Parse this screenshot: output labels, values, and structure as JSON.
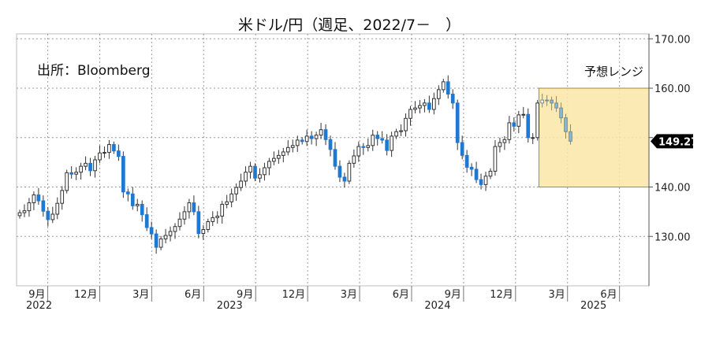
{
  "chart_data": {
    "type": "candlestick",
    "title": "米ドル/円（週足、2022/7－　）",
    "source": "出所：Bloomberg",
    "range_label": "予想レンジ",
    "last_price_label": "149.27",
    "ylim": [
      120,
      171
    ],
    "y_ticks": [
      {
        "value": 130,
        "label": "130.00"
      },
      {
        "value": 140,
        "label": "140.00"
      },
      {
        "value": 150,
        "label": ""
      },
      {
        "value": 160,
        "label": "160.00"
      },
      {
        "value": 170,
        "label": "170.00"
      }
    ],
    "x_months": [
      {
        "label": "9月",
        "value": 2
      },
      {
        "label": "12月",
        "value": 5
      },
      {
        "label": "3月",
        "value": 8
      },
      {
        "label": "6月",
        "value": 11
      },
      {
        "label": "9月",
        "value": 14
      },
      {
        "label": "12月",
        "value": 17
      },
      {
        "label": "3月",
        "value": 20
      },
      {
        "label": "6月",
        "value": 23
      },
      {
        "label": "9月",
        "value": 26
      },
      {
        "label": "12月",
        "value": 29
      },
      {
        "label": "3月",
        "value": 32
      },
      {
        "label": "6月",
        "value": 35
      }
    ],
    "x_years": [
      {
        "label": "2022",
        "value": 1.5
      },
      {
        "label": "2023",
        "value": 12.5
      },
      {
        "label": "2024",
        "value": 24.5
      },
      {
        "label": "2025",
        "value": 33.5
      }
    ],
    "x_range": [
      0.2,
      36.7
    ],
    "forecast_range": {
      "x_start": 30.35,
      "x_end": 36.7,
      "y_low": 140,
      "y_high": 160
    },
    "closes": [
      134.8,
      135.2,
      136.8,
      138.4,
      137.2,
      135.1,
      133.4,
      134.5,
      136.7,
      139.3,
      142.9,
      142.6,
      143.0,
      144.2,
      144.8,
      143.3,
      145.5,
      146.9,
      147.0,
      148.6,
      147.3,
      146.2,
      139.0,
      138.6,
      136.2,
      136.5,
      134.4,
      131.8,
      130.5,
      127.8,
      129.5,
      130.2,
      131.0,
      132.0,
      133.5,
      135.0,
      136.8,
      135.0,
      130.6,
      131.4,
      133.0,
      133.8,
      134.1,
      136.5,
      137.0,
      138.6,
      139.9,
      141.2,
      143.0,
      144.2,
      141.8,
      142.5,
      143.9,
      145.2,
      145.8,
      146.4,
      147.1,
      148.0,
      148.4,
      149.5,
      149.2,
      150.3,
      149.8,
      150.5,
      151.6,
      149.6,
      147.6,
      144.2,
      142.0,
      141.2,
      144.8,
      146.3,
      148.2,
      148.0,
      148.4,
      150.5,
      149.8,
      149.5,
      147.4,
      150.3,
      151.2,
      151.4,
      153.9,
      155.7,
      156.0,
      156.5,
      157.0,
      155.7,
      157.9,
      159.7,
      161.3,
      158.8,
      157.0,
      149.0,
      146.4,
      144.0,
      143.6,
      141.5,
      140.5,
      142.2,
      143.2,
      148.2,
      149.0,
      149.6,
      153.0,
      152.3,
      154.6,
      154.7,
      150.0,
      150.0,
      157.0,
      157.6,
      157.6,
      157.0,
      156.0,
      154.0,
      151.2,
      149.27
    ]
  }
}
